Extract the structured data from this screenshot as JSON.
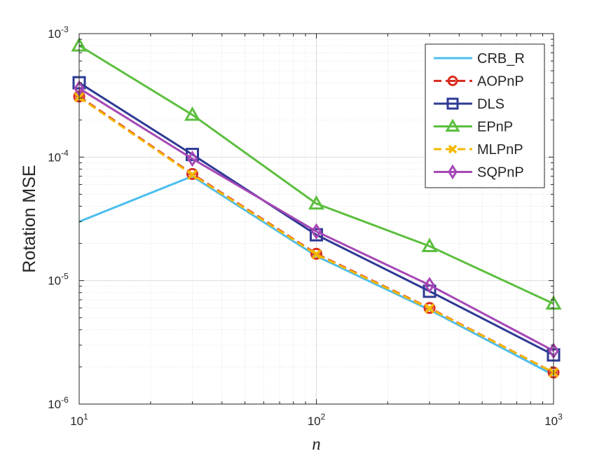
{
  "chart_data": {
    "type": "line",
    "xscale": "log",
    "yscale": "log",
    "x": [
      10,
      30,
      100,
      300,
      1000
    ],
    "xlim": [
      10,
      1000
    ],
    "ylim": [
      1e-06,
      0.001
    ],
    "xlabel": "n",
    "ylabel": "Rotation MSE",
    "grid": true,
    "minor_grid": true,
    "legend_position": "top-right",
    "x_ticks": [
      {
        "base": "10",
        "exp": "1"
      },
      {
        "base": "10",
        "exp": "2"
      },
      {
        "base": "10",
        "exp": "3"
      }
    ],
    "y_ticks": [
      {
        "base": "10",
        "exp": "-6"
      },
      {
        "base": "10",
        "exp": "-5"
      },
      {
        "base": "10",
        "exp": "-4"
      },
      {
        "base": "10",
        "exp": "-3"
      }
    ],
    "series": [
      {
        "name": "CRB_R",
        "color": "#4DBEEE",
        "style": "solid",
        "marker": "none",
        "values": [
          3e-05,
          7e-05,
          1.58e-05,
          5.8e-06,
          1.72e-06
        ]
      },
      {
        "name": "AOPnP",
        "color": "#D92D20",
        "style": "dashed",
        "marker": "circle",
        "values": [
          0.00031,
          7.3e-05,
          1.65e-05,
          6e-06,
          1.8e-06
        ]
      },
      {
        "name": "DLS",
        "color": "#2E3A94",
        "style": "solid",
        "marker": "square",
        "values": [
          0.0004,
          0.000105,
          2.35e-05,
          8.2e-06,
          2.5e-06
        ]
      },
      {
        "name": "EPnP",
        "color": "#5CBF3F",
        "style": "solid",
        "marker": "triangle",
        "values": [
          0.0008,
          0.00022,
          4.2e-05,
          1.9e-05,
          6.5e-06
        ]
      },
      {
        "name": "MLPnP",
        "color": "#F5B800",
        "style": "dashed",
        "marker": "x",
        "values": [
          0.000305,
          7.2e-05,
          1.63e-05,
          5.95e-06,
          1.8e-06
        ]
      },
      {
        "name": "SQPnP",
        "color": "#A548B5",
        "style": "solid",
        "marker": "diamond",
        "values": [
          0.00036,
          9.7e-05,
          2.5e-05,
          9.2e-06,
          2.7e-06
        ]
      }
    ]
  }
}
